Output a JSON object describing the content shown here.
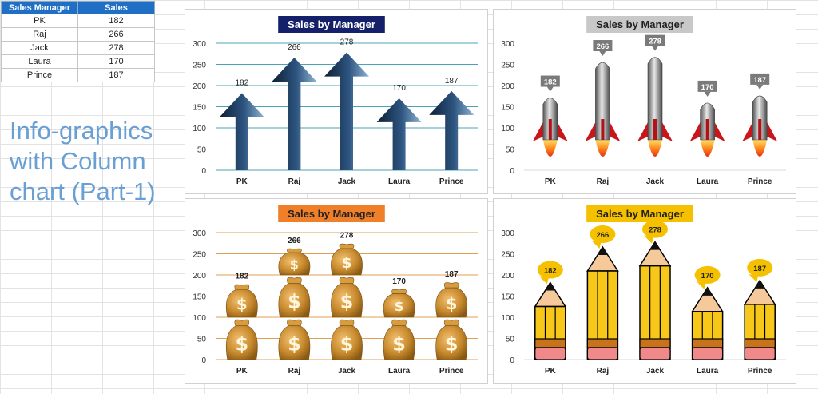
{
  "table": {
    "headers": [
      "Sales Manager",
      "Sales"
    ],
    "rows": [
      [
        "PK",
        "182"
      ],
      [
        "Raj",
        "266"
      ],
      [
        "Jack",
        "278"
      ],
      [
        "Laura",
        "170"
      ],
      [
        "Prince",
        "187"
      ]
    ]
  },
  "side_title": "Info-graphics with Column chart (Part-1)",
  "colors": {
    "header_bg": "#1f6fc5",
    "side_title": "#6a9fd4"
  },
  "chart_data": [
    {
      "type": "bar",
      "style": "arrow",
      "title": "Sales by Manager",
      "title_bg": "#14206a",
      "title_color": "#ffffff",
      "categories": [
        "PK",
        "Raj",
        "Jack",
        "Laura",
        "Prince"
      ],
      "values": [
        182,
        266,
        278,
        170,
        187
      ],
      "ylim": [
        0,
        300
      ],
      "yticks": [
        0,
        50,
        100,
        150,
        200,
        250,
        300
      ],
      "grid": true,
      "grid_color": "#4aa3b5"
    },
    {
      "type": "bar",
      "style": "rocket",
      "title": "Sales by Manager",
      "title_bg": "#c8c8c8",
      "title_color": "#222222",
      "categories": [
        "PK",
        "Raj",
        "Jack",
        "Laura",
        "Prince"
      ],
      "values": [
        182,
        266,
        278,
        170,
        187
      ],
      "ylim": [
        0,
        300
      ],
      "yticks": [
        0,
        50,
        100,
        150,
        200,
        250,
        300
      ],
      "grid": false
    },
    {
      "type": "bar",
      "style": "moneybag",
      "title": "Sales by Manager",
      "title_bg": "#f07f2a",
      "title_color": "#222222",
      "categories": [
        "PK",
        "Raj",
        "Jack",
        "Laura",
        "Prince"
      ],
      "values": [
        182,
        266,
        278,
        170,
        187
      ],
      "ylim": [
        0,
        300
      ],
      "yticks": [
        0,
        50,
        100,
        150,
        200,
        250,
        300
      ],
      "grid": true,
      "grid_color": "#e0a050"
    },
    {
      "type": "bar",
      "style": "pencil",
      "title": "Sales by Manager",
      "title_bg": "#f5c000",
      "title_color": "#222222",
      "categories": [
        "PK",
        "Raj",
        "Jack",
        "Laura",
        "Prince"
      ],
      "values": [
        182,
        266,
        278,
        170,
        187
      ],
      "ylim": [
        0,
        300
      ],
      "yticks": [
        0,
        50,
        100,
        150,
        200,
        250,
        300
      ],
      "grid": false
    }
  ]
}
